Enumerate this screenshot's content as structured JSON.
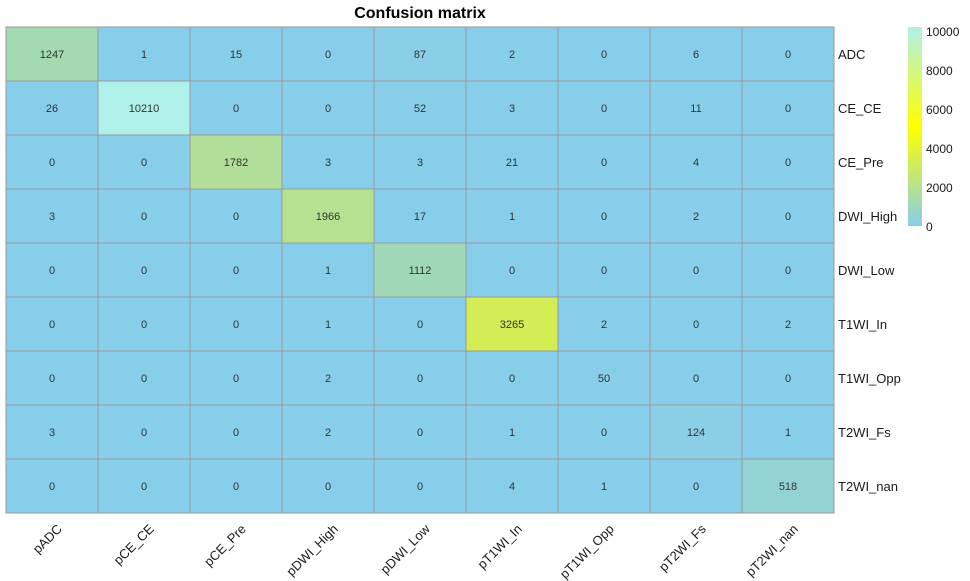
{
  "chart_data": {
    "type": "heatmap",
    "title": "Confusion matrix",
    "x_labels": [
      "pADC",
      "pCE_CE",
      "pCE_Pre",
      "pDWI_High",
      "pDWI_Low",
      "pT1WI_In",
      "pT1WI_Opp",
      "pT2WI_Fs",
      "pT2WI_nan"
    ],
    "y_labels": [
      "ADC",
      "CE_CE",
      "CE_Pre",
      "DWI_High",
      "DWI_Low",
      "T1WI_In",
      "T1WI_Opp",
      "T2WI_Fs",
      "T2WI_nan"
    ],
    "values": [
      [
        1247,
        1,
        15,
        0,
        87,
        2,
        0,
        6,
        0
      ],
      [
        26,
        10210,
        0,
        0,
        52,
        3,
        0,
        11,
        0
      ],
      [
        0,
        0,
        1782,
        3,
        3,
        21,
        0,
        4,
        0
      ],
      [
        3,
        0,
        0,
        1966,
        17,
        1,
        0,
        2,
        0
      ],
      [
        0,
        0,
        0,
        1,
        1112,
        0,
        0,
        0,
        0
      ],
      [
        0,
        0,
        0,
        1,
        0,
        3265,
        2,
        0,
        2
      ],
      [
        0,
        0,
        0,
        2,
        0,
        0,
        50,
        0,
        0
      ],
      [
        3,
        0,
        0,
        2,
        0,
        1,
        0,
        124,
        1
      ],
      [
        0,
        0,
        0,
        0,
        0,
        4,
        1,
        0,
        518
      ]
    ],
    "colorbar": {
      "min": 0,
      "max": 10210,
      "ticks": [
        0,
        2000,
        4000,
        6000,
        8000,
        10000
      ],
      "colors": [
        "#87ceeb",
        "#ffff00",
        "#aff0e8"
      ]
    },
    "legend_position": "right",
    "grid": true
  }
}
